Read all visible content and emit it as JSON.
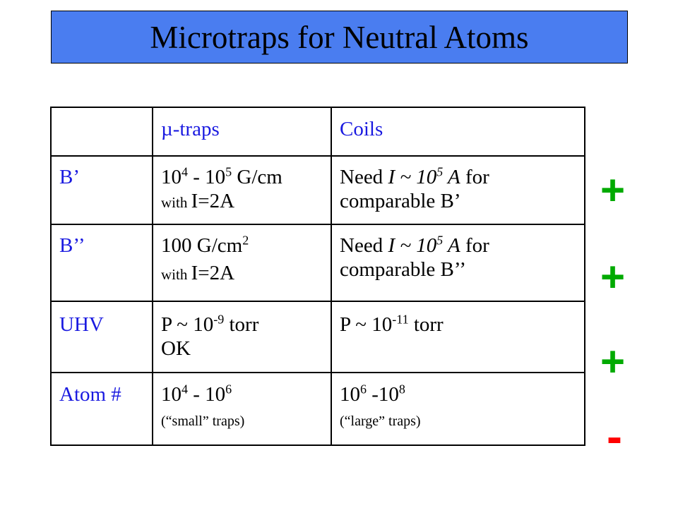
{
  "title": "Microtraps for Neutral Atoms",
  "table": {
    "headers": [
      "",
      "µ-traps",
      "Coils"
    ],
    "rows": [
      {
        "label": "B’",
        "traps": {
          "base": "10",
          "exp1": "4",
          "mid": " - 10",
          "exp2": "5",
          "tail": " G/cm",
          "note": "with ",
          "note2": "I=2A"
        },
        "coils": {
          "pre": "Need ",
          "i": "I ~ 10",
          "exp": "5",
          "a": " A",
          "post": " for",
          "line2": "comparable  B’"
        }
      },
      {
        "label": "B’’",
        "traps": {
          "base": "100 G/cm",
          "exp": "2",
          "note": "with ",
          "note2": "I=2A"
        },
        "coils": {
          "pre": "Need ",
          "i": "I ~ 10",
          "exp": "5",
          "a": " A",
          "post": " for",
          "line2": "comparable  B’’"
        }
      },
      {
        "label": "UHV",
        "traps": {
          "base": "P ~ 10",
          "exp": "-9",
          "tail": " torr",
          "line2": "OK"
        },
        "coils": {
          "base": "P ~ 10",
          "exp": "-11",
          "tail": " torr"
        }
      },
      {
        "label": "Atom #",
        "traps": {
          "base": "10",
          "exp1": "4",
          "mid": " - 10",
          "exp2": "6",
          "note": "(“small” traps)"
        },
        "coils": {
          "base": "10",
          "exp1": "6",
          "mid": " -10",
          "exp2": "8",
          "note": "(“large” traps)"
        }
      }
    ]
  },
  "signs": [
    {
      "symbol": "+",
      "color": "#00aa00"
    },
    {
      "symbol": "+",
      "color": "#00aa00"
    },
    {
      "symbol": "+",
      "color": "#00aa00"
    },
    {
      "symbol": "-",
      "color": "#ff0000"
    }
  ]
}
